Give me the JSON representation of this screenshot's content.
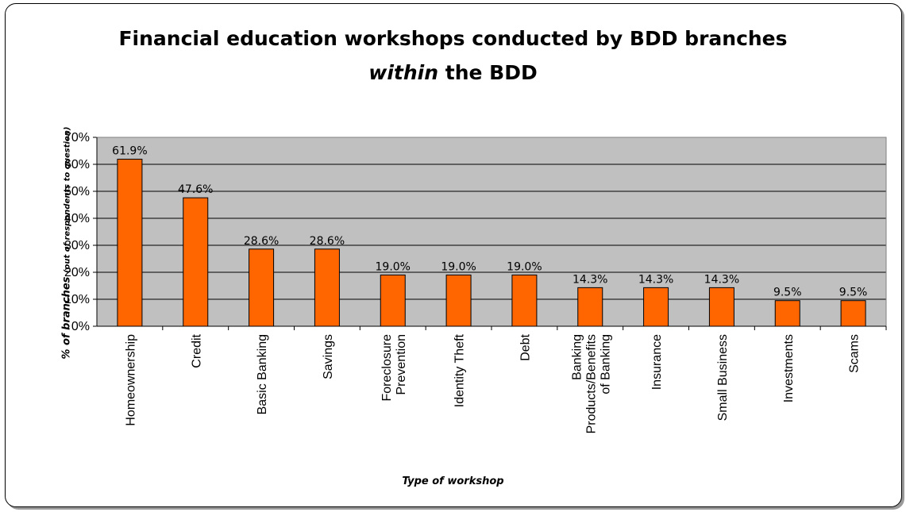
{
  "page": {
    "title_line1": "Financial education workshops conducted by BDD branches",
    "title_line2_italic": "within",
    "title_line2_rest": " the BDD"
  },
  "chart_data": {
    "type": "bar",
    "title": "Financial education workshops conducted by BDD branches within the BDD",
    "xlabel": "Type of workshop",
    "ylabel_main": "% of branches",
    "ylabel_note": "(out of respondents to question)",
    "categories": [
      [
        "Homeownership"
      ],
      [
        "Credit"
      ],
      [
        "Basic Banking"
      ],
      [
        "Savings"
      ],
      [
        "Foreclosure",
        "Prevention"
      ],
      [
        "Identity Theft"
      ],
      [
        "Debt"
      ],
      [
        "Banking",
        "Products/Benefits",
        "of Banking"
      ],
      [
        "Insurance"
      ],
      [
        "Small Business"
      ],
      [
        "Investments"
      ],
      [
        "Scams"
      ]
    ],
    "values": [
      61.9,
      47.6,
      28.6,
      28.6,
      19.0,
      19.0,
      19.0,
      14.3,
      14.3,
      14.3,
      9.5,
      9.5
    ],
    "value_labels": [
      "61.9%",
      "47.6%",
      "28.6%",
      "28.6%",
      "19.0%",
      "19.0%",
      "19.0%",
      "14.3%",
      "14.3%",
      "14.3%",
      "9.5%",
      "9.5%"
    ],
    "yticks": [
      0,
      10,
      20,
      30,
      40,
      50,
      60,
      70
    ],
    "ytick_labels": [
      "0%",
      "10%",
      "20%",
      "30%",
      "40%",
      "50%",
      "60%",
      "70%"
    ],
    "ylim": [
      0,
      70
    ],
    "grid": true,
    "colors": {
      "bar": "#ff6600",
      "plot_background": "#c0c0c0"
    }
  }
}
